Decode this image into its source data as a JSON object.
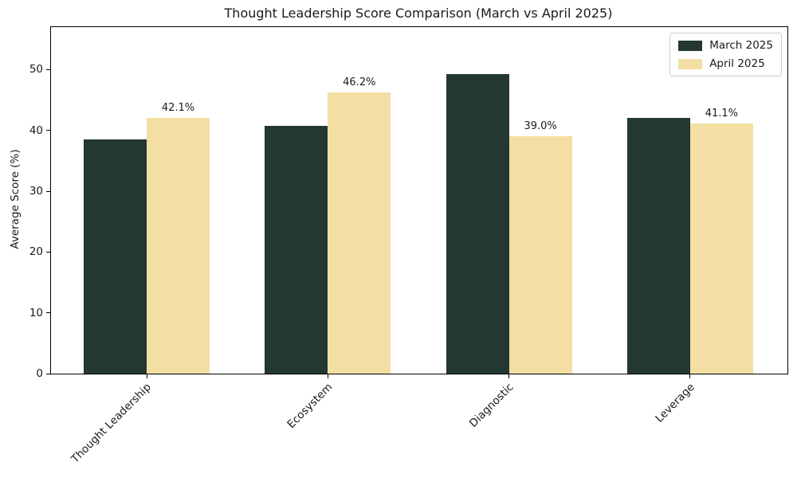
{
  "figure": {
    "title": "Thought Leadership Score Comparison (March vs April 2025)"
  },
  "chart_data": {
    "type": "bar",
    "title": "Thought Leadership Score Comparison (March vs April 2025)",
    "xlabel": "",
    "ylabel": "Average Score (%)",
    "categories": [
      "Thought Leadership",
      "Ecosystem",
      "Diagnostic",
      "Leverage"
    ],
    "series": [
      {
        "name": "March 2025",
        "color": "#233733",
        "values": [
          38.5,
          40.7,
          49.3,
          42.0
        ],
        "value_labels": [
          "",
          "",
          "",
          ""
        ]
      },
      {
        "name": "April 2025",
        "color": "#f3dea3",
        "values": [
          42.1,
          46.2,
          39.0,
          41.1
        ],
        "value_labels": [
          "42.1%",
          "46.2%",
          "39.0%",
          "41.1%"
        ]
      }
    ],
    "yticks": [
      0,
      10,
      20,
      30,
      40,
      50
    ],
    "ylim": [
      0,
      57
    ],
    "grid": false,
    "legend_position": "upper right",
    "xtick_rotation_deg": 45
  }
}
